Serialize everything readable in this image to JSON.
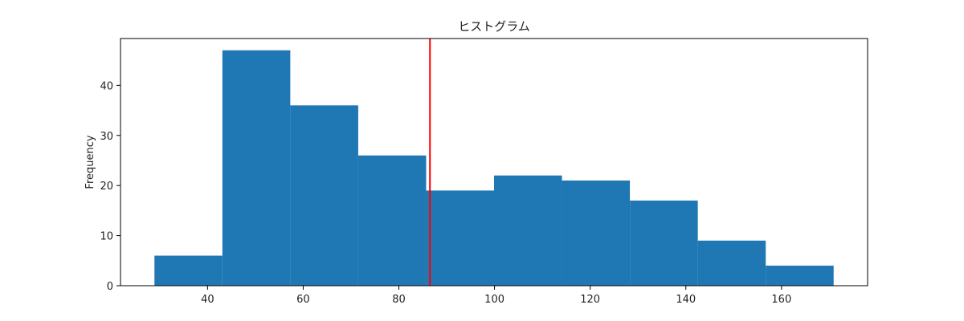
{
  "chart_data": {
    "type": "bar",
    "title": "ヒストグラム",
    "xlabel": "",
    "ylabel": "Frequency",
    "bin_edges": [
      28.9,
      43.1,
      57.3,
      71.5,
      85.7,
      99.9,
      114.1,
      128.3,
      142.5,
      156.7,
      170.9
    ],
    "values": [
      6,
      47,
      36,
      26,
      19,
      22,
      21,
      17,
      9,
      4
    ],
    "bar_color": "#1f77b4",
    "vline": {
      "x": 86.5,
      "color": "#ff0000"
    },
    "xlim": [
      21.8,
      178.0
    ],
    "ylim": [
      0,
      49.35
    ],
    "xticks": [
      40,
      60,
      80,
      100,
      120,
      140,
      160
    ],
    "yticks": [
      0,
      10,
      20,
      30,
      40
    ],
    "grid": false
  }
}
